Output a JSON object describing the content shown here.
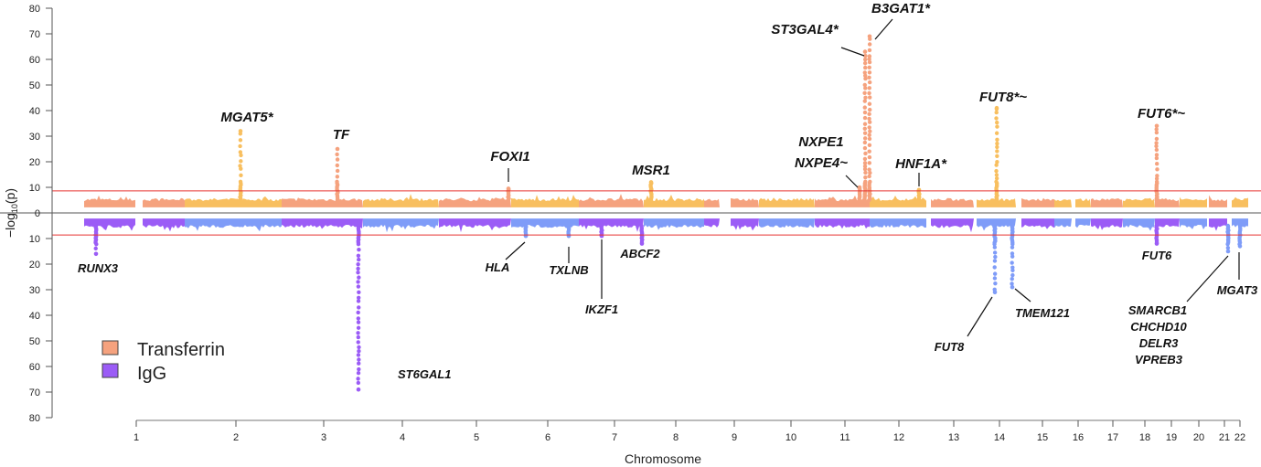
{
  "chart_data": {
    "type": "scatter",
    "subtype": "miami",
    "ylabel": "−log10(p)",
    "ylabel_main": "−log",
    "ylabel_sub": "10",
    "ylabel_tail": "(p)",
    "xlabel": "Chromosome",
    "ylim_top": [
      0,
      80
    ],
    "ylim_bottom": [
      0,
      80
    ],
    "yticks_top": [
      "0",
      "10",
      "20",
      "30",
      "40",
      "50",
      "60",
      "70",
      "80"
    ],
    "yticks_bottom": [
      "10",
      "20",
      "30",
      "40",
      "50",
      "60",
      "70",
      "80"
    ],
    "xticks": [
      "1",
      "2",
      "3",
      "4",
      "5",
      "6",
      "7",
      "8",
      "9",
      "10",
      "11",
      "12",
      "13",
      "14",
      "15",
      "16",
      "17",
      "18",
      "19",
      "20",
      "21",
      "22"
    ],
    "threshold": 8.6,
    "grid": false,
    "legend_placement": "bottom-left",
    "legend": [
      {
        "name": "Transferrin",
        "color": "#F5A27E"
      },
      {
        "name": "IgG",
        "color": "#9B5CF6"
      }
    ],
    "colors": {
      "transferrin_a": "#F5A27E",
      "transferrin_b": "#F8BF5F",
      "igg_a": "#9B5CF6",
      "igg_b": "#7F9CF8",
      "threshold_line": "#E8312F"
    },
    "peaks_top": [
      {
        "gene": "MGAT5*",
        "chromosome": 2,
        "value": 32
      },
      {
        "gene": "TF",
        "chromosome": 3,
        "value": 25
      },
      {
        "gene": "FOXI1",
        "chromosome": 5,
        "value": 9.5
      },
      {
        "gene": "MSR1",
        "chromosome": 8,
        "value": 12
      },
      {
        "gene": "NXPE1",
        "gene2": "NXPE4~",
        "chromosome": 11,
        "value": 10
      },
      {
        "gene": "ST3GAL4*",
        "chromosome": 11,
        "value": 63
      },
      {
        "gene": "B3GAT1*",
        "chromosome": 11,
        "value": 69
      },
      {
        "gene": "HNF1A*",
        "chromosome": 12,
        "value": 9
      },
      {
        "gene": "FUT8*~",
        "chromosome": 14,
        "value": 41
      },
      {
        "gene": "FUT6*~",
        "chromosome": 19,
        "value": 34
      }
    ],
    "peaks_bottom": [
      {
        "gene": "RUNX3",
        "chromosome": 1,
        "value": 16
      },
      {
        "gene": "ST6GAL1",
        "chromosome": 3,
        "value": 69
      },
      {
        "gene": "HLA",
        "chromosome": 6,
        "value": 9
      },
      {
        "gene": "TXLNB",
        "chromosome": 6,
        "value": 9
      },
      {
        "gene": "IKZF1",
        "chromosome": 7,
        "value": 9
      },
      {
        "gene": "ABCF2",
        "chromosome": 7,
        "value": 12
      },
      {
        "gene": "FUT8",
        "chromosome": 14,
        "value": 31
      },
      {
        "gene": "TMEM121",
        "chromosome": 14,
        "value": 29
      },
      {
        "gene": "FUT6",
        "chromosome": 19,
        "value": 12
      },
      {
        "gene": "SMARCB1",
        "gene2": "CHCHD10",
        "gene3": "DELR3",
        "gene4": "VPREB3",
        "chromosome": 22,
        "value": 15
      },
      {
        "gene": "MGAT3",
        "chromosome": 22,
        "value": 13
      }
    ]
  }
}
